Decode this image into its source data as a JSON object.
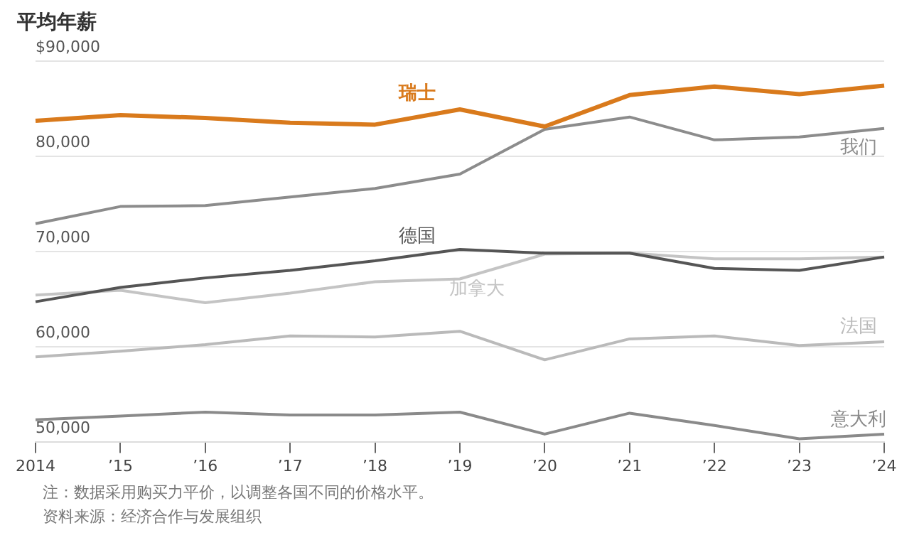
{
  "chart_data": {
    "type": "line",
    "title": "平均年薪",
    "categories": [
      "2014",
      "’15",
      "’16",
      "’17",
      "’18",
      "’19",
      "’20",
      "’21",
      "’22",
      "’23",
      "’24"
    ],
    "series": [
      {
        "name": "瑞士",
        "color": "#d97a1c",
        "values": [
          83700,
          84300,
          84000,
          83500,
          83300,
          84900,
          83100,
          86400,
          87300,
          86500,
          87400
        ]
      },
      {
        "name": "我们",
        "color": "#8c8c8c",
        "values": [
          72900,
          74700,
          74800,
          75700,
          76600,
          78100,
          82800,
          84100,
          81700,
          82000,
          82900
        ]
      },
      {
        "name": "德国",
        "color": "#555555",
        "values": [
          64700,
          66200,
          67200,
          68000,
          69000,
          70200,
          69800,
          69800,
          68200,
          68000,
          69400
        ]
      },
      {
        "name": "加拿大",
        "color": "#c4c4c4",
        "values": [
          65400,
          65900,
          64600,
          65600,
          66800,
          67100,
          69700,
          69800,
          69200,
          69200,
          69400
        ]
      },
      {
        "name": "法国",
        "color": "#bababa",
        "values": [
          58900,
          59500,
          60200,
          61100,
          61000,
          61600,
          58600,
          60800,
          61100,
          60100,
          60500
        ]
      },
      {
        "name": "意大利",
        "color": "#8a8a8a",
        "values": [
          52300,
          52700,
          53100,
          52800,
          52800,
          53100,
          50800,
          53000,
          51700,
          50300,
          50800
        ]
      }
    ],
    "ylim": [
      50000,
      90000
    ],
    "yticks": [
      {
        "value": 50000,
        "label": "50,000"
      },
      {
        "value": 60000,
        "label": "60,000"
      },
      {
        "value": 70000,
        "label": "70,000"
      },
      {
        "value": 80000,
        "label": "80,000"
      },
      {
        "value": 90000,
        "label": "$90,000"
      }
    ],
    "grid": "y",
    "legend": false,
    "marker": "none",
    "line_style": "solid",
    "annotations": [
      "注：数据采用购买力平价，以调整各国不同的价格水平。",
      "资料来源：经济合作与发展组织"
    ]
  }
}
